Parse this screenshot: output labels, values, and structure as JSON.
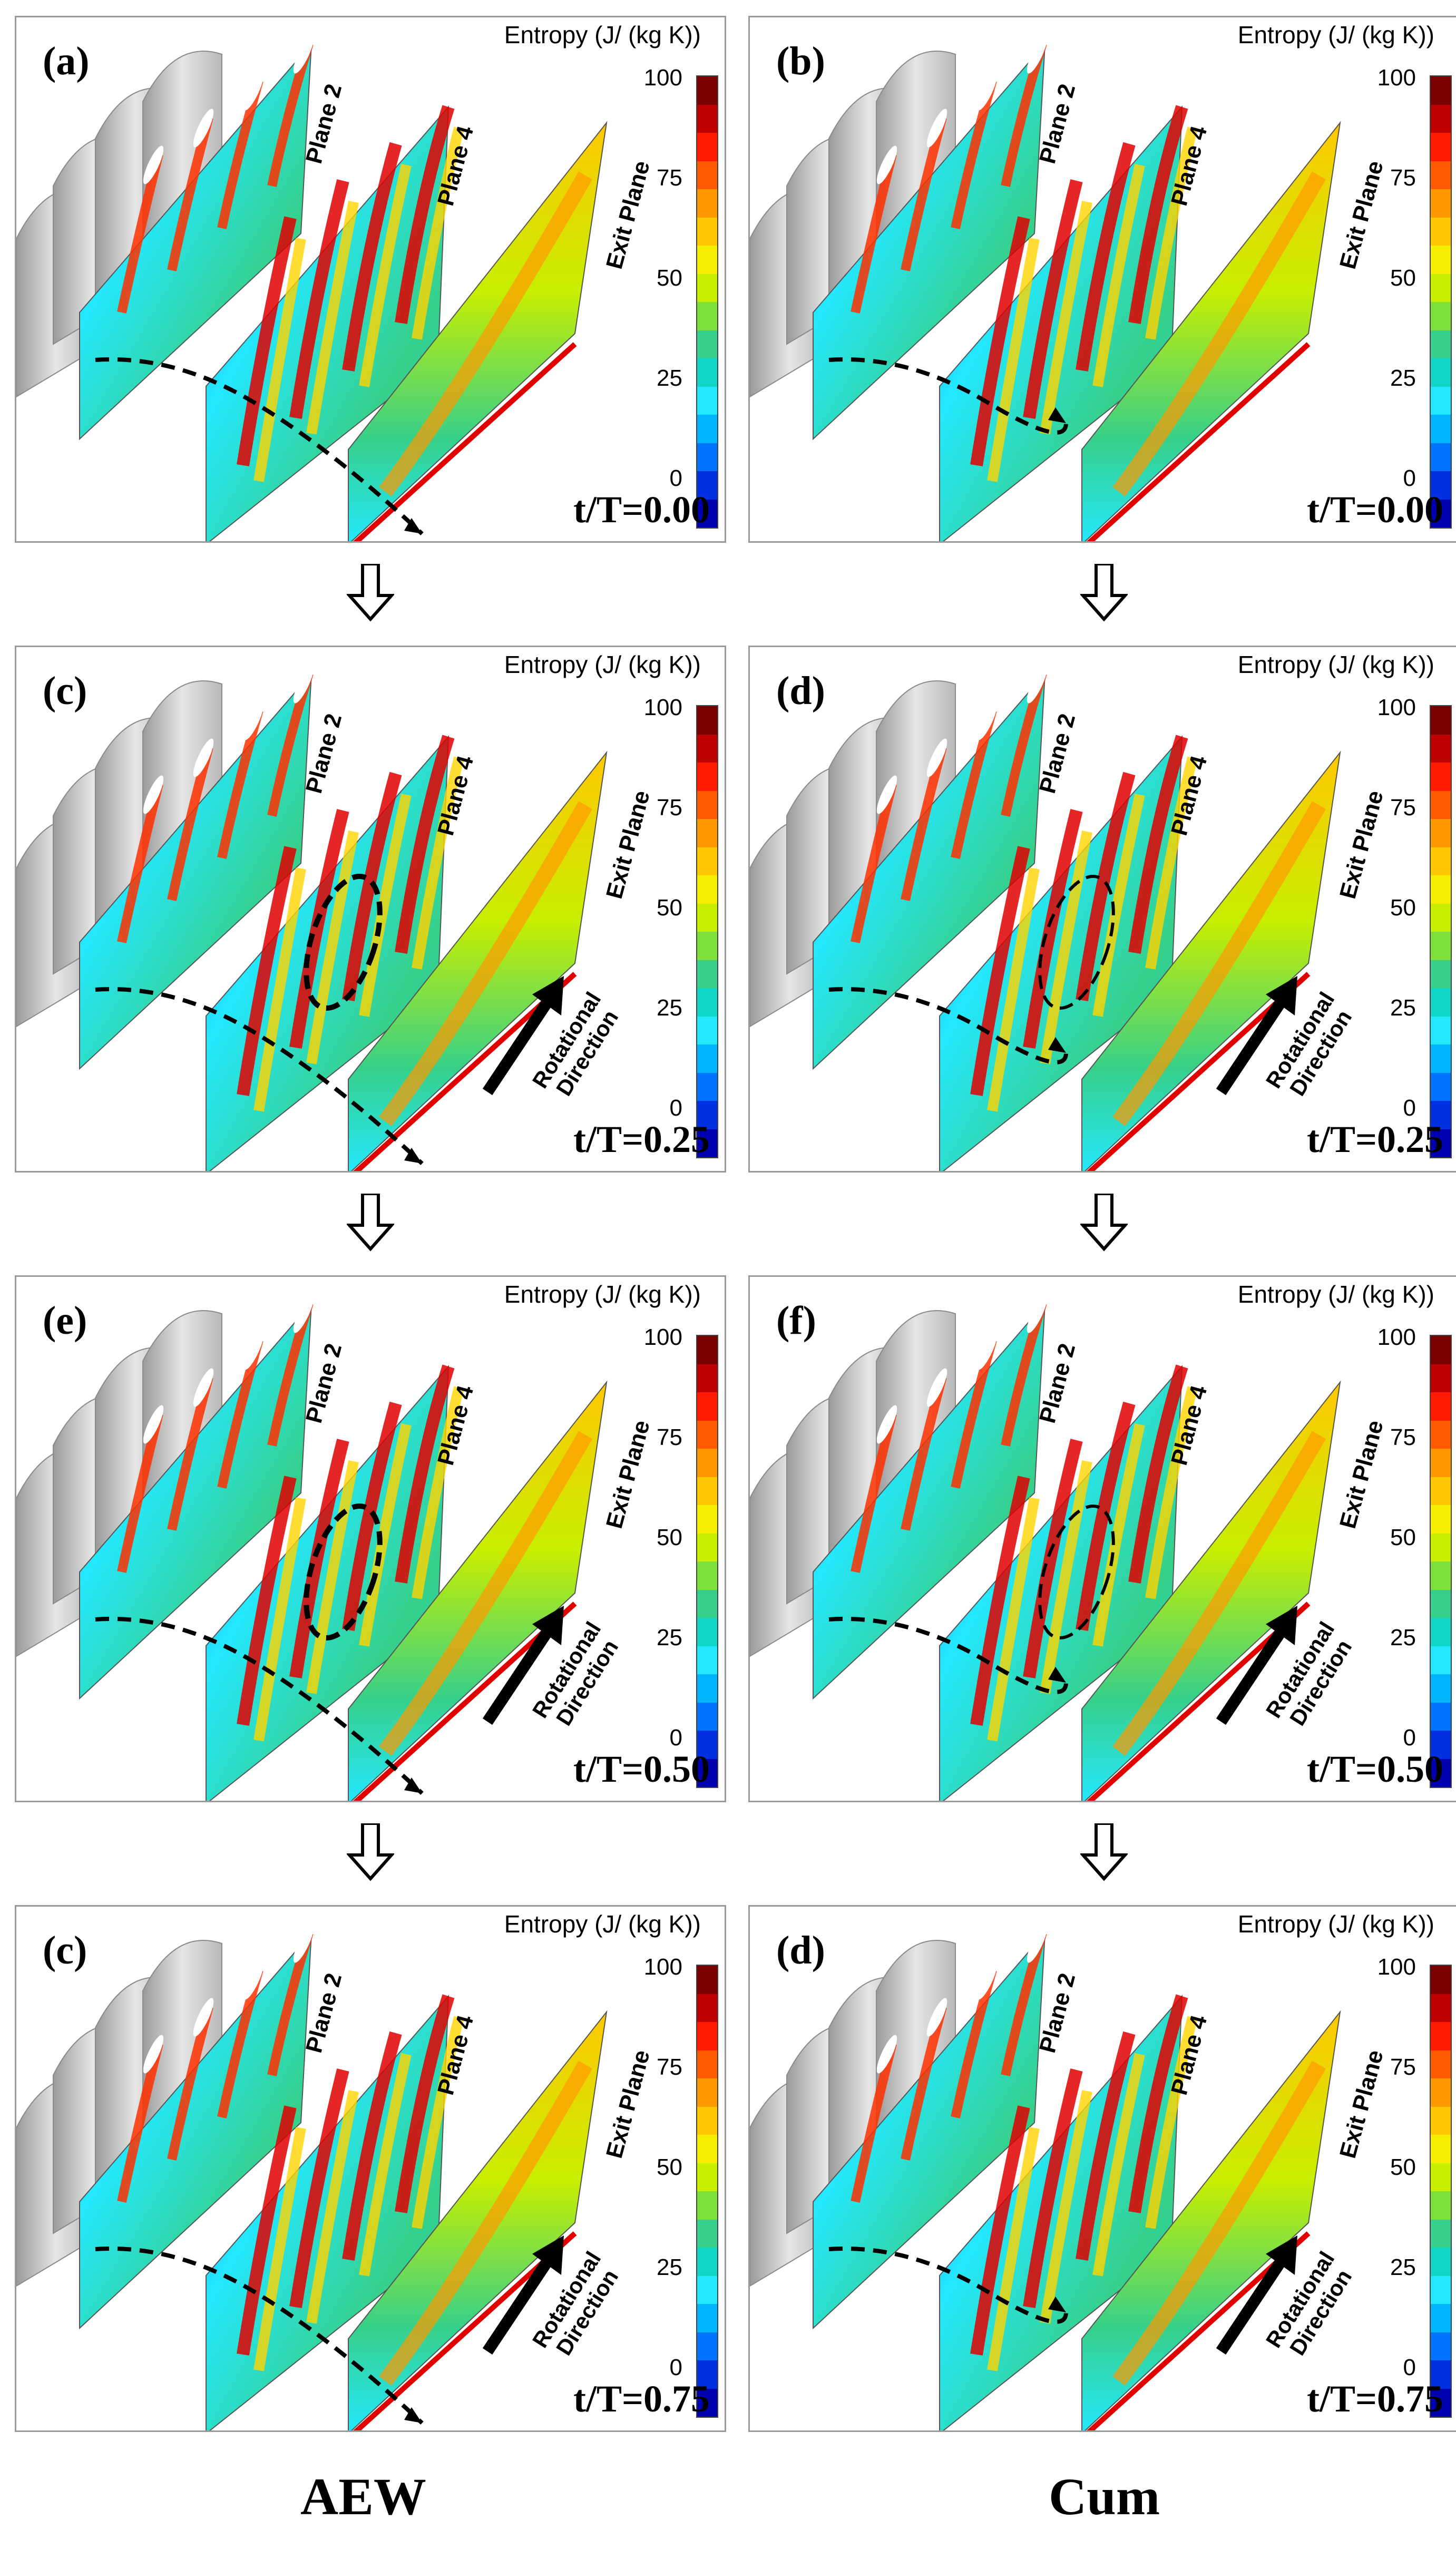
{
  "colorbar": {
    "title": "Entropy (J/ (kg K))",
    "ticks": [
      "100",
      "75",
      "50",
      "25",
      "0"
    ],
    "colors": [
      "#7a0000",
      "#c00000",
      "#ff1a00",
      "#ff5a00",
      "#ff9900",
      "#ffc800",
      "#f5ee00",
      "#c8ee00",
      "#7ee03a",
      "#36d08a",
      "#10d6c8",
      "#24e8ff",
      "#00b4ff",
      "#0074ff",
      "#0030e0",
      "#0000b0"
    ]
  },
  "plane_labels": {
    "plane2": "Plane 2",
    "plane4": "Plane 4",
    "exit": "Exit Plane"
  },
  "rotational": {
    "line1": "Rotational",
    "line2": "Direction"
  },
  "panels": [
    {
      "id": "a",
      "label": "(a)",
      "time": "t/T=0.00"
    },
    {
      "id": "b",
      "label": "(b)",
      "time": "t/T=0.00"
    },
    {
      "id": "c",
      "label": "(c)",
      "time": "t/T=0.25"
    },
    {
      "id": "d",
      "label": "(d)",
      "time": "t/T=0.25"
    },
    {
      "id": "e",
      "label": "(e)",
      "time": "t/T=0.50"
    },
    {
      "id": "f",
      "label": "(f)",
      "time": "t/T=0.50"
    },
    {
      "id": "g",
      "label": "(c)",
      "time": "t/T=0.75"
    },
    {
      "id": "h",
      "label": "(d)",
      "time": "t/T=0.75"
    }
  ],
  "columns": {
    "left": "AEW",
    "right": "Cum"
  }
}
